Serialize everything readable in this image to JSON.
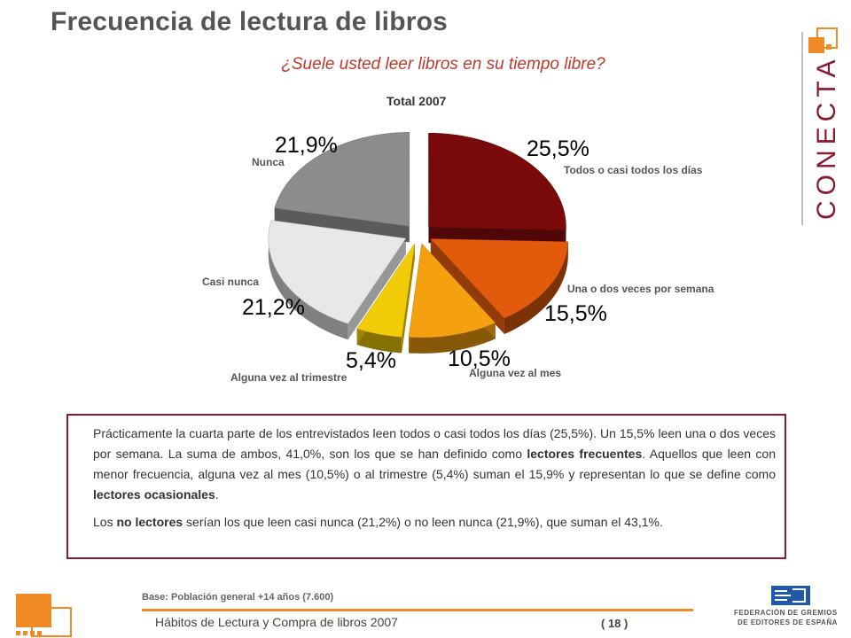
{
  "header": {
    "title": "Frecuencia de lectura de libros",
    "subtitle": "¿Suele usted leer libros en su tiempo libre?"
  },
  "chart_data": {
    "type": "pie",
    "title": "Total 2007",
    "slices": [
      {
        "label": "Todos o casi todos los días",
        "value": 25.5,
        "display": "25,5%",
        "color": "#7a0a0a"
      },
      {
        "label": "Una o dos veces por semana",
        "value": 15.5,
        "display": "15,5%",
        "color": "#e25a0c"
      },
      {
        "label": "Alguna vez al mes",
        "value": 10.5,
        "display": "10,5%",
        "color": "#f5a00f"
      },
      {
        "label": "Alguna vez al trimestre",
        "value": 5.4,
        "display": "5,4%",
        "color": "#f2cc08"
      },
      {
        "label": "Casi nunca",
        "value": 21.2,
        "display": "21,2%",
        "color": "#e8e8e8"
      },
      {
        "label": "Nunca",
        "value": 21.9,
        "display": "21,9%",
        "color": "#8c8c8c"
      }
    ]
  },
  "summary": {
    "p1_a": "Prácticamente la cuarta parte de los entrevistados leen todos o casi todos los días (25,5%). Un 15,5% leen una o dos veces por semana. La suma de ambos, 41,0%, son los que se han definido como ",
    "p1_b": "lectores frecuentes",
    "p1_c": ". Aquellos que leen con menor frecuencia, alguna vez al mes (10,5%) o al trimestre (5,4%) suman el 15,9% y representan lo que se define como ",
    "p1_d": "lectores ocasionales",
    "p1_e": ".",
    "p2_a": "Los ",
    "p2_b": "no lectores",
    "p2_c": " serían los que leen casi nunca (21,2%) o no leen nunca (21,9%), que suman el 43,1%."
  },
  "footer": {
    "base": "Base: Población general +14 años (7.600)",
    "left_text": "Hábitos de Lectura y Compra de libros 2007",
    "page": "( 18 )",
    "federation_line1": "FEDERACIÓN DE GREMIOS",
    "federation_line2": "DE EDITORES DE ESPAÑA"
  },
  "brand": {
    "name": "CONECTA",
    "accent_color": "#f08a24",
    "frame_color": "#8b1a2e"
  }
}
